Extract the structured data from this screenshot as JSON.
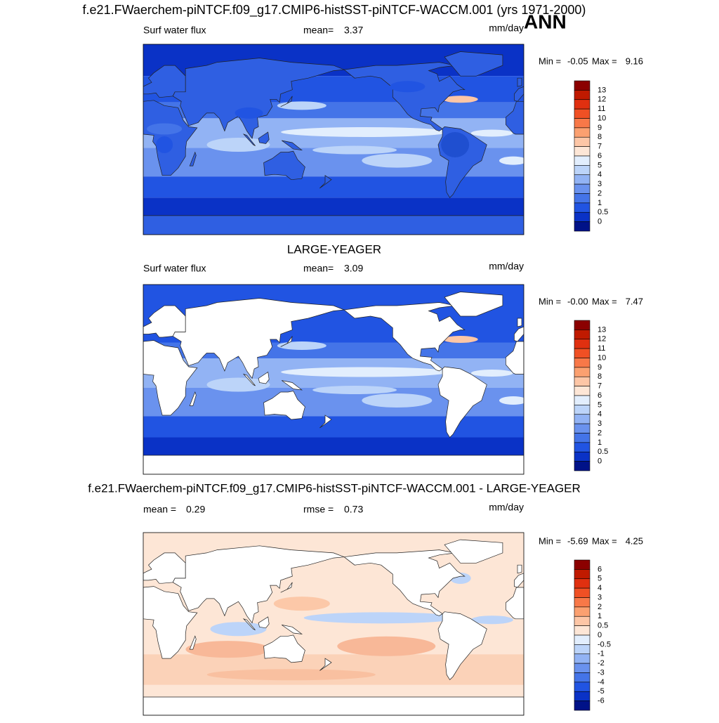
{
  "title": "f.e21.FWaerchem-piNTCF.f09_g17.CMIP6-histSST-piNTCF-WACCM.001 (yrs 1971-2000)",
  "season": "ANN",
  "panels": [
    {
      "variable": "Surf water flux",
      "mean_label": "mean=",
      "mean": 3.37,
      "units": "mm/day",
      "min_label": "Min =",
      "min": -0.05,
      "max_label": "Max =",
      "max": 9.16,
      "colorbar": {
        "levels": [
          13,
          12,
          11,
          10,
          9,
          8,
          7,
          6,
          5,
          4,
          3,
          2,
          1,
          0.5,
          0
        ],
        "colors": [
          "#8b0000",
          "#c01a00",
          "#e03010",
          "#f05024",
          "#f87848",
          "#fba070",
          "#fdc6a6",
          "#fde6d6",
          "#e2eefd",
          "#bcd4f9",
          "#92b3f4",
          "#6a92ee",
          "#4474e8",
          "#2154e2",
          "#0a32c6",
          "#001288"
        ]
      }
    },
    {
      "title": "LARGE-YEAGER",
      "variable": "Surf water flux",
      "mean_label": "mean=",
      "mean": 3.09,
      "units": "mm/day",
      "min_label": "Min =",
      "min": "-0.00",
      "max_label": "Max =",
      "max": 7.47,
      "colorbar": {
        "levels": [
          13,
          12,
          11,
          10,
          9,
          8,
          7,
          6,
          5,
          4,
          3,
          2,
          1,
          0.5,
          0
        ],
        "colors": [
          "#8b0000",
          "#c01a00",
          "#e03010",
          "#f05024",
          "#f87848",
          "#fba070",
          "#fdc6a6",
          "#fde6d6",
          "#e2eefd",
          "#bcd4f9",
          "#92b3f4",
          "#6a92ee",
          "#4474e8",
          "#2154e2",
          "#0a32c6",
          "#001288"
        ]
      }
    },
    {
      "title": "f.e21.FWaerchem-piNTCF.f09_g17.CMIP6-histSST-piNTCF-WACCM.001 - LARGE-YEAGER",
      "mean_label": "mean =",
      "mean": 0.29,
      "rmse_label": "rmse =",
      "rmse": 0.73,
      "units": "mm/day",
      "min_label": "Min =",
      "min": -5.69,
      "max_label": "Max =",
      "max": 4.25,
      "colorbar": {
        "levels": [
          6,
          5,
          4,
          3,
          2,
          1,
          0.5,
          0,
          -0.5,
          -1,
          -2,
          -3,
          -4,
          -5,
          -6
        ],
        "colors": [
          "#8b0000",
          "#c01a00",
          "#e03010",
          "#f05024",
          "#f87848",
          "#fba070",
          "#fdc6a6",
          "#fde6d6",
          "#e2eefd",
          "#bcd4f9",
          "#92b3f4",
          "#6a92ee",
          "#4474e8",
          "#2154e2",
          "#0a32c6",
          "#001288"
        ]
      }
    }
  ]
}
